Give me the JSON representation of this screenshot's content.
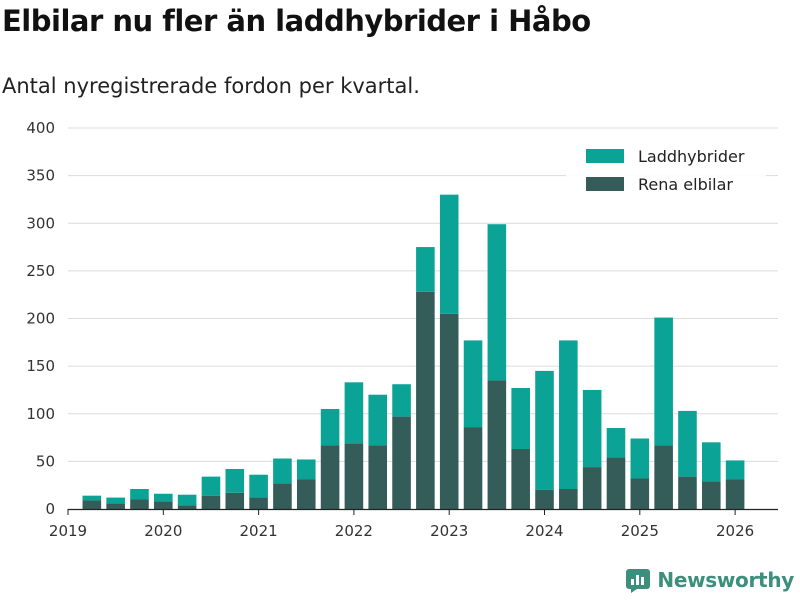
{
  "chart_data": {
    "type": "bar",
    "stacked": true,
    "title": "Elbilar nu fler än laddhybrider i Håbo",
    "subtitle": "Antal nyregistrerade fordon per kvartal.",
    "xlabel": "",
    "ylabel": "",
    "ylim": [
      0,
      400
    ],
    "yticks": [
      0,
      50,
      100,
      150,
      200,
      250,
      300,
      350,
      400
    ],
    "xlim": [
      2019.0,
      2026.45
    ],
    "xticks": [
      2019,
      2020,
      2021,
      2022,
      2023,
      2024,
      2025,
      2026
    ],
    "xtick_labels": [
      "2019",
      "2020",
      "2021",
      "2022",
      "2023",
      "2024",
      "2025",
      "2026"
    ],
    "grid": "horizontal",
    "legend_position": "top-right",
    "colors": {
      "rena": "#345c59",
      "laddhybrider": "#0aa396"
    },
    "x": [
      2019.25,
      2019.5,
      2019.75,
      2020.0,
      2020.25,
      2020.5,
      2020.75,
      2021.0,
      2021.25,
      2021.5,
      2021.75,
      2022.0,
      2022.25,
      2022.5,
      2022.75,
      2023.0,
      2023.25,
      2023.5,
      2023.75,
      2024.0,
      2024.25,
      2024.5,
      2024.75,
      2025.0,
      2025.25,
      2025.5,
      2025.75,
      2026.0
    ],
    "series": [
      {
        "name": "Rena elbilar",
        "values": [
          9,
          6,
          10,
          8,
          4,
          14,
          17,
          12,
          27,
          31,
          67,
          69,
          67,
          97,
          228,
          205,
          86,
          135,
          63,
          20,
          21,
          44,
          54,
          32,
          67,
          34,
          29,
          31
        ]
      },
      {
        "name": "Laddhybrider",
        "values": [
          5,
          6,
          11,
          8,
          11,
          20,
          25,
          24,
          26,
          21,
          38,
          64,
          53,
          34,
          47,
          125,
          91,
          164,
          64,
          125,
          156,
          81,
          31,
          42,
          134,
          69,
          41,
          20
        ]
      }
    ]
  },
  "legend": {
    "laddhybrider": "Laddhybrider",
    "rena": "Rena elbilar"
  },
  "branding": {
    "name": "Newsworthy"
  }
}
